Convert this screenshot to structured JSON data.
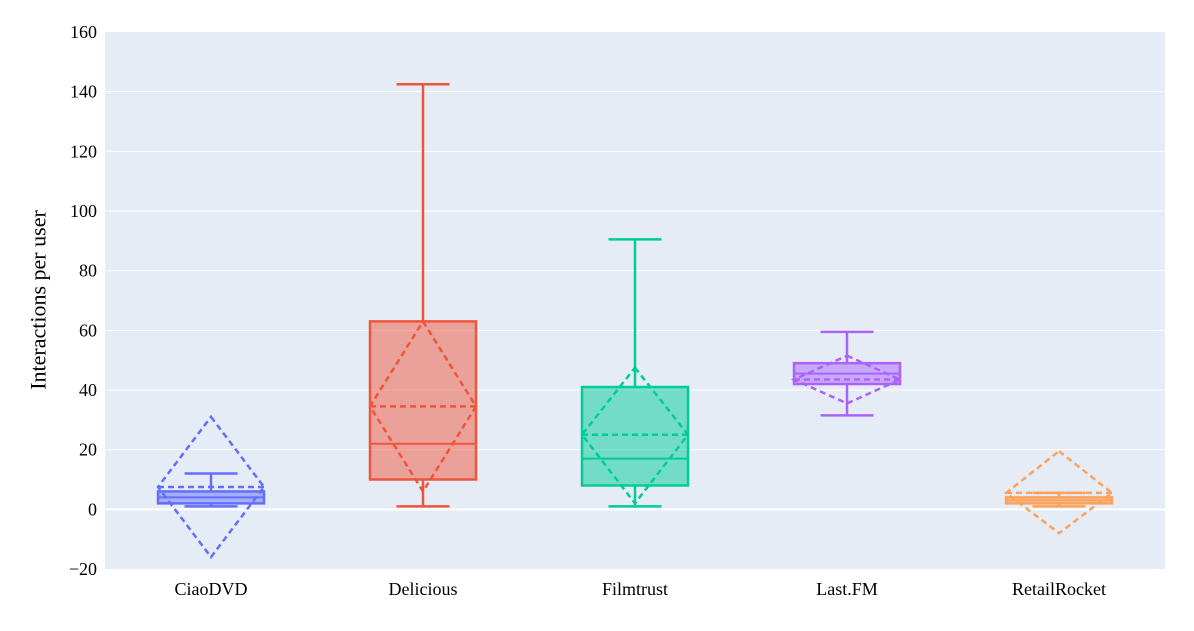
{
  "chart_data": {
    "type": "box",
    "title": "",
    "xlabel": "",
    "ylabel": "Interactions per user",
    "ylim": [
      -20,
      160
    ],
    "yticks": [
      -20,
      0,
      20,
      40,
      60,
      80,
      100,
      120,
      140,
      160
    ],
    "ytick_labels": [
      "−20",
      "0",
      "20",
      "40",
      "60",
      "80",
      "100",
      "120",
      "140",
      "160"
    ],
    "grid": true,
    "boxmean": "sd",
    "categories": [
      "CiaoDVD",
      "Delicious",
      "Filmtrust",
      "Last.FM",
      "RetailRocket"
    ],
    "series": [
      {
        "name": "CiaoDVD",
        "color": "#636efa",
        "lower_fence": 1,
        "q1": 2,
        "median": 4,
        "q3": 6,
        "upper_fence": 12,
        "mean": 7.5,
        "sd_lower": -16,
        "sd_upper": 31
      },
      {
        "name": "Delicious",
        "color": "#ef553b",
        "lower_fence": 1,
        "q1": 10,
        "median": 22,
        "q3": 63,
        "upper_fence": 142.5,
        "mean": 34.5,
        "sd_lower": 6,
        "sd_upper": 63
      },
      {
        "name": "Filmtrust",
        "color": "#00cc96",
        "lower_fence": 1,
        "q1": 8,
        "median": 17,
        "q3": 41,
        "upper_fence": 90.5,
        "mean": 25,
        "sd_lower": 2,
        "sd_upper": 47.5
      },
      {
        "name": "Last.FM",
        "color": "#ab63fa",
        "lower_fence": 31.5,
        "q1": 42,
        "median": 45.5,
        "q3": 49,
        "upper_fence": 59.5,
        "mean": 43.5,
        "sd_lower": 35.5,
        "sd_upper": 51.5
      },
      {
        "name": "RetailRocket",
        "color": "#ffa15a",
        "lower_fence": 1,
        "q1": 2,
        "median": 3,
        "q3": 4,
        "upper_fence": 5.5,
        "mean": 5.5,
        "sd_lower": -8,
        "sd_upper": 19.5
      }
    ]
  }
}
